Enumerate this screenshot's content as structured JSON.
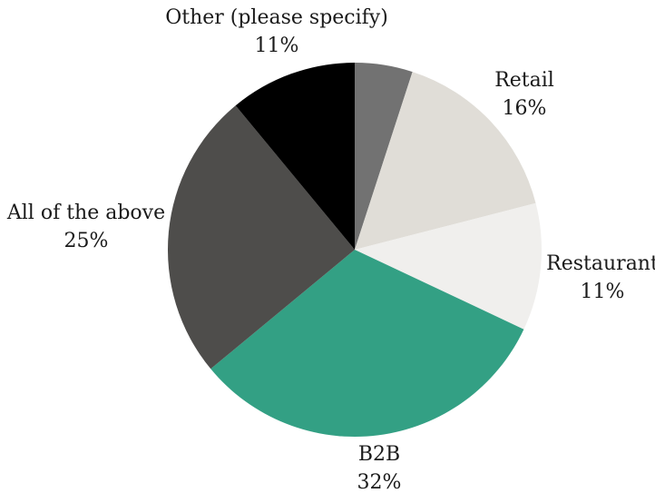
{
  "chart_data": {
    "type": "pie",
    "title": "",
    "start_angle_deg": 0,
    "direction": "clockwise",
    "slices": [
      {
        "label": "",
        "value": 5,
        "percent_label": "",
        "color": "#727272"
      },
      {
        "label": "Retail",
        "value": 16,
        "percent_label": "16%",
        "color": "#e0ddd7"
      },
      {
        "label": "Restaurant",
        "value": 11,
        "percent_label": "11%",
        "color": "#f0efed"
      },
      {
        "label": "B2B",
        "value": 32,
        "percent_label": "32%",
        "color": "#33a084"
      },
      {
        "label": "All of the above",
        "value": 25,
        "percent_label": "25%",
        "color": "#4e4d4b"
      },
      {
        "label": "Other (please specify)",
        "value": 11,
        "percent_label": "11%",
        "color": "#000000"
      }
    ]
  }
}
